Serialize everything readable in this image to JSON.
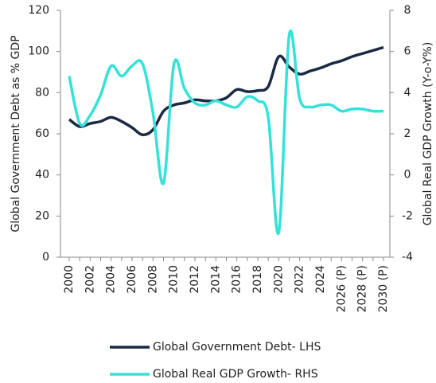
{
  "chart_data": {
    "type": "line",
    "categories": [
      "2000",
      null,
      "2002",
      null,
      "2004",
      null,
      "2006",
      null,
      "2008",
      null,
      "2010",
      null,
      "2012",
      null,
      "2014",
      null,
      "2016",
      null,
      "2018",
      null,
      "2020",
      null,
      "2022",
      null,
      "2024",
      null,
      "2026 (P)",
      null,
      "2028 (P)",
      null,
      "2030 (P)"
    ],
    "ylabel": "Global Government Debt as % GDP",
    "y2label": "Global Real GDP Growth (Y-o-Y%)",
    "ylim": [
      0,
      120
    ],
    "yticks": [
      0,
      20,
      40,
      60,
      80,
      100,
      120
    ],
    "y2lim": [
      -4,
      8
    ],
    "y2ticks": [
      -4,
      -2,
      0,
      2,
      4,
      6,
      8
    ],
    "legend": "bottom",
    "series": [
      {
        "name": "Global Government Debt- LHS",
        "color": "#1b2a43",
        "values": [
          67,
          63.5,
          65,
          66,
          68,
          66,
          63,
          59.5,
          62,
          71,
          74,
          75,
          76.5,
          76,
          76,
          77.5,
          81.5,
          80.5,
          81,
          83,
          97.5,
          92.5,
          89,
          90.5,
          92,
          94,
          95.5,
          97.5,
          99,
          100.5,
          102
        ]
      },
      {
        "name": "Global Real GDP Growth- RHS",
        "color": "#35e2d8",
        "axis": "y2",
        "values": [
          4.8,
          2.5,
          2.9,
          3.9,
          5.3,
          4.8,
          5.3,
          5.4,
          3.0,
          -0.4,
          5.4,
          4.2,
          3.5,
          3.4,
          3.6,
          3.4,
          3.3,
          3.8,
          3.6,
          2.8,
          -2.8,
          6.8,
          3.7,
          3.3,
          3.4,
          3.4,
          3.1,
          3.2,
          3.2,
          3.1,
          3.1
        ]
      }
    ]
  }
}
